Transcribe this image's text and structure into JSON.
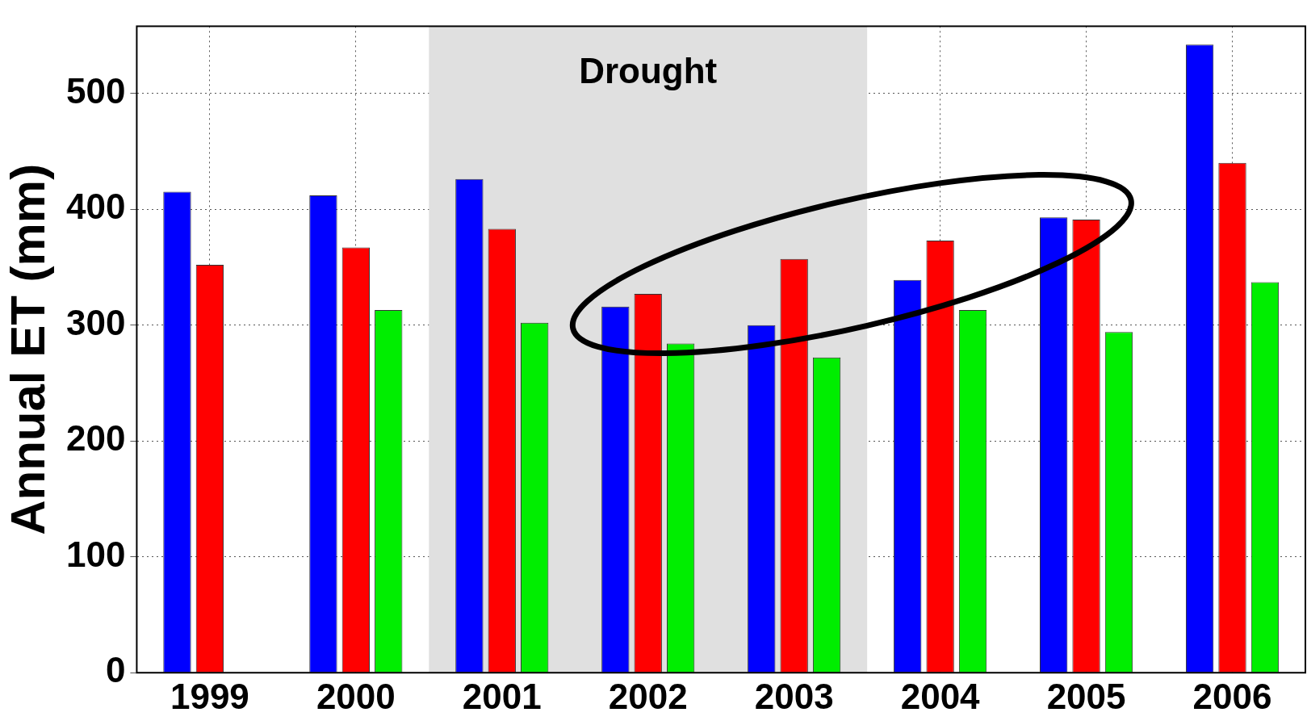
{
  "chart_data": {
    "type": "bar",
    "ylabel": "Annual ET (mm)",
    "categories": [
      "1999",
      "2000",
      "2001",
      "2002",
      "2003",
      "2004",
      "2005",
      "2006"
    ],
    "series": [
      {
        "color": "#0000ff",
        "values": [
          415,
          412,
          426,
          316,
          300,
          339,
          393,
          542
        ]
      },
      {
        "color": "#ff0000",
        "values": [
          352,
          367,
          383,
          327,
          357,
          373,
          391,
          440
        ]
      },
      {
        "color": "#00ee00",
        "values": [
          null,
          313,
          302,
          284,
          272,
          313,
          294,
          337
        ]
      }
    ],
    "ylim": [
      0,
      558
    ],
    "yticks": [
      0,
      100,
      200,
      300,
      400,
      500
    ],
    "grid": true,
    "bands": [
      {
        "axis": "x",
        "from": "2001",
        "to": "2003",
        "label": "Drought",
        "color": "#e0e0e0"
      }
    ]
  }
}
